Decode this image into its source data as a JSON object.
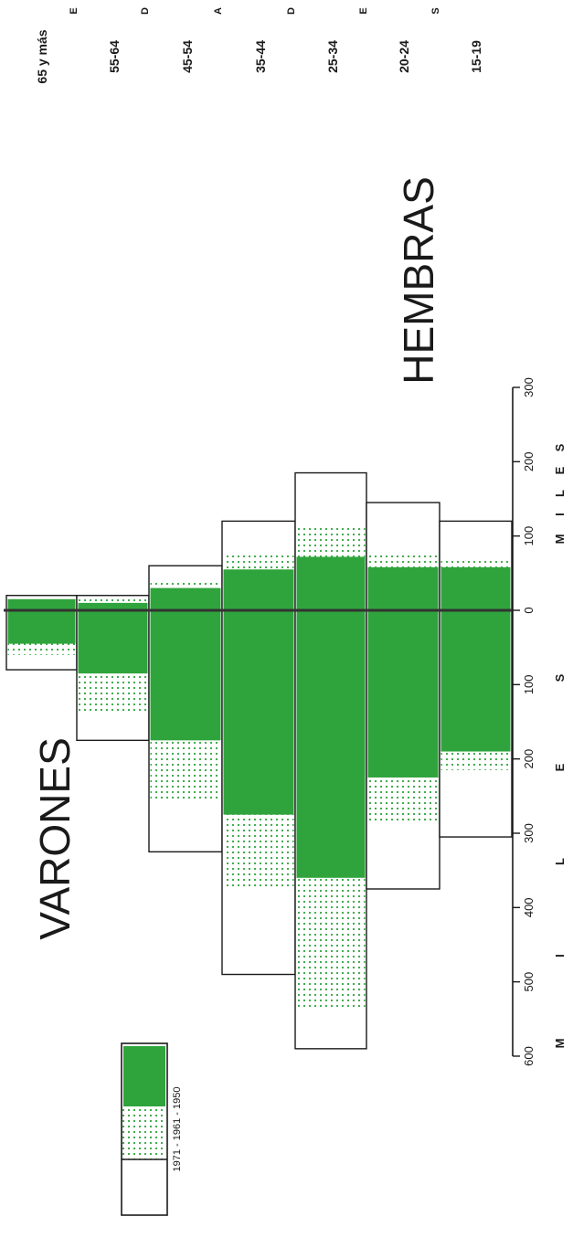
{
  "chart_data": {
    "type": "bar",
    "orientation": "population pyramid (rotated 90°)",
    "title_left": "VARONES",
    "title_right": "HEMBRAS",
    "axis_letters": [
      "M",
      "I",
      "L",
      "E",
      "S"
    ],
    "axis_letters_right": [
      "M",
      "I",
      "L",
      "E",
      "S"
    ],
    "age_axis_letters": [
      "E",
      "D",
      "A",
      "D",
      "E",
      "S"
    ],
    "categories": [
      "65 y más",
      "55-64",
      "45-54",
      "35-44",
      "25-34",
      "20-24",
      "15-19"
    ],
    "xlim": [
      -600,
      300
    ],
    "ticks_left": [
      600,
      500,
      400,
      300,
      200,
      100,
      0
    ],
    "ticks_right": [
      100,
      200,
      300
    ],
    "series": [
      {
        "name": "1971",
        "varones": [
          80,
          175,
          325,
          490,
          590,
          375,
          305
        ],
        "hembras": [
          20,
          20,
          60,
          120,
          185,
          145,
          120
        ]
      },
      {
        "name": "1961",
        "varones": [
          60,
          140,
          255,
          375,
          535,
          285,
          215
        ],
        "hembras": [
          18,
          15,
          40,
          75,
          115,
          78,
          68
        ]
      },
      {
        "name": "1950",
        "varones": [
          45,
          85,
          175,
          275,
          360,
          225,
          190
        ],
        "hembras": [
          15,
          10,
          30,
          55,
          72,
          58,
          58
        ]
      }
    ],
    "legend_labels": [
      "1971",
      "-",
      "1961",
      "-",
      "1950"
    ],
    "colors": {
      "1971": "#ffffff",
      "1961": "#2fa43c",
      "1950": "#2fa43c"
    },
    "legend_placement": "bottom-left"
  }
}
